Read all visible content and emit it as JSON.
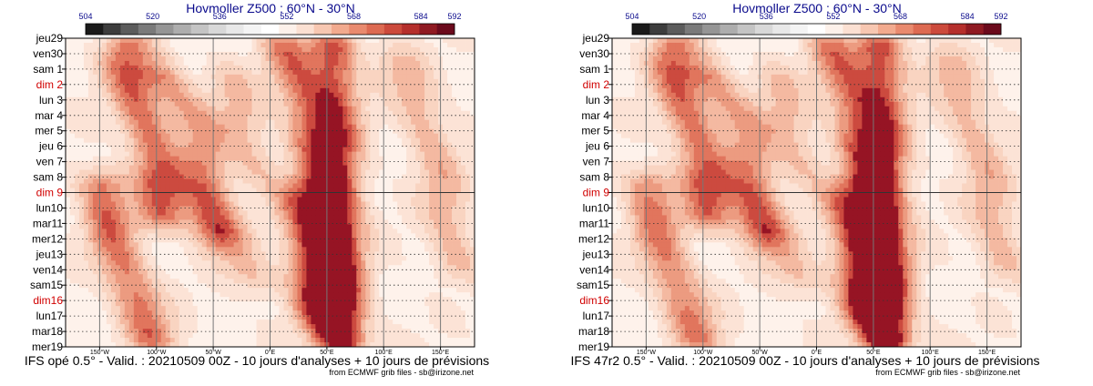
{
  "chart_data": [
    {
      "type": "heatmap",
      "title": "Hovmoller Z500 : 60°N - 30°N",
      "model_label": "IFS opé 0.5° - Valid. : 20210509 00Z - 10 jours d'analyses + 10 jours de prévisions",
      "credit": "from ECMWF grib files - sb@irizone.net",
      "colorbar_ticks": [
        504,
        520,
        536,
        552,
        568,
        584,
        592
      ],
      "colorbar_colors": [
        "#1a1a1a",
        "#3d3d3d",
        "#5c5c5c",
        "#7a7a7a",
        "#959595",
        "#adadad",
        "#c4c4c4",
        "#d8d8d8",
        "#e8e8e8",
        "#f4f4f4",
        "#ffffff",
        "#fdf1ea",
        "#fbe0d2",
        "#f7c7b1",
        "#f2aa8e",
        "#e98a6e",
        "#dd6a52",
        "#cc4a3c",
        "#b52f2c",
        "#8f1a22",
        "#6b0a1c"
      ],
      "x_ticks": [
        "150°W",
        "100°W",
        "50°W",
        "0°E",
        "50°E",
        "100°E",
        "150°E"
      ],
      "xlim": [
        -180,
        180
      ],
      "y_ticks": [
        {
          "label": "jeu29",
          "weekend": false
        },
        {
          "label": "ven30",
          "weekend": false
        },
        {
          "label": "sam 1",
          "weekend": false
        },
        {
          "label": "dim 2",
          "weekend": true
        },
        {
          "label": "lun 3",
          "weekend": false
        },
        {
          "label": "mar 4",
          "weekend": false
        },
        {
          "label": "mer 5",
          "weekend": false
        },
        {
          "label": "jeu 6",
          "weekend": false
        },
        {
          "label": "ven 7",
          "weekend": false
        },
        {
          "label": "sam 8",
          "weekend": false
        },
        {
          "label": "dim 9",
          "weekend": true
        },
        {
          "label": "lun10",
          "weekend": false
        },
        {
          "label": "mar11",
          "weekend": false
        },
        {
          "label": "mer12",
          "weekend": false
        },
        {
          "label": "jeu13",
          "weekend": false
        },
        {
          "label": "ven14",
          "weekend": false
        },
        {
          "label": "sam15",
          "weekend": false
        },
        {
          "label": "dim16",
          "weekend": true
        },
        {
          "label": "lun17",
          "weekend": false
        },
        {
          "label": "mar18",
          "weekend": false
        },
        {
          "label": "mer19",
          "weekend": false
        }
      ],
      "analysis_split_day": "dim 9",
      "ridges": [
        {
          "lon": [
            -125,
            -130,
            -100,
            -95
          ],
          "days": [
            0,
            1.5,
            8,
            12
          ],
          "strength": 0.6
        },
        {
          "lon": [
            -100,
            -60,
            -45
          ],
          "days": [
            2,
            6,
            13
          ],
          "strength": 0.45
        },
        {
          "lon": [
            -80,
            -50,
            -10
          ],
          "days": [
            9,
            12,
            16
          ],
          "strength": 0.35
        },
        {
          "lon": [
            -150,
            -140,
            -100
          ],
          "days": [
            9,
            13,
            20
          ],
          "strength": 0.6
        },
        {
          "lon": [
            10,
            30,
            45,
            55
          ],
          "days": [
            0,
            4,
            10,
            20
          ],
          "strength": 0.55
        },
        {
          "lon": [
            55,
            60,
            65
          ],
          "days": [
            0,
            8,
            20
          ],
          "strength": 0.7
        },
        {
          "lon": [
            110,
            130,
            150,
            165
          ],
          "days": [
            1,
            4,
            9,
            15
          ],
          "strength": 0.35
        },
        {
          "lon": [
            -40,
            -25,
            -10
          ],
          "days": [
            2,
            5,
            9
          ],
          "strength": 0.3
        },
        {
          "lon": [
            20,
            30,
            40
          ],
          "days": [
            10,
            12,
            18
          ],
          "strength": 0.5
        }
      ]
    },
    {
      "type": "heatmap",
      "title": "Hovmoller Z500 : 60°N - 30°N",
      "model_label": "IFS 47r2 0.5° - Valid. : 20210509 00Z - 10 jours d'analyses + 10 jours de prévisions",
      "credit": "from ECMWF grib files - sb@irizone.net",
      "colorbar_ticks": [
        504,
        520,
        536,
        552,
        568,
        584,
        592
      ],
      "colorbar_colors": [
        "#1a1a1a",
        "#3d3d3d",
        "#5c5c5c",
        "#7a7a7a",
        "#959595",
        "#adadad",
        "#c4c4c4",
        "#d8d8d8",
        "#e8e8e8",
        "#f4f4f4",
        "#ffffff",
        "#fdf1ea",
        "#fbe0d2",
        "#f7c7b1",
        "#f2aa8e",
        "#e98a6e",
        "#dd6a52",
        "#cc4a3c",
        "#b52f2c",
        "#8f1a22",
        "#6b0a1c"
      ],
      "x_ticks": [
        "150°W",
        "100°W",
        "50°W",
        "0°E",
        "50°E",
        "100°E",
        "150°E"
      ],
      "xlim": [
        -180,
        180
      ],
      "y_ticks": [
        {
          "label": "jeu29",
          "weekend": false
        },
        {
          "label": "ven30",
          "weekend": false
        },
        {
          "label": "sam 1",
          "weekend": false
        },
        {
          "label": "dim 2",
          "weekend": true
        },
        {
          "label": "lun 3",
          "weekend": false
        },
        {
          "label": "mar 4",
          "weekend": false
        },
        {
          "label": "mer 5",
          "weekend": false
        },
        {
          "label": "jeu 6",
          "weekend": false
        },
        {
          "label": "ven 7",
          "weekend": false
        },
        {
          "label": "sam 8",
          "weekend": false
        },
        {
          "label": "dim 9",
          "weekend": true
        },
        {
          "label": "lun10",
          "weekend": false
        },
        {
          "label": "mar11",
          "weekend": false
        },
        {
          "label": "mer12",
          "weekend": false
        },
        {
          "label": "jeu13",
          "weekend": false
        },
        {
          "label": "ven14",
          "weekend": false
        },
        {
          "label": "sam15",
          "weekend": false
        },
        {
          "label": "dim16",
          "weekend": true
        },
        {
          "label": "lun17",
          "weekend": false
        },
        {
          "label": "mar18",
          "weekend": false
        },
        {
          "label": "mer19",
          "weekend": false
        }
      ],
      "analysis_split_day": "dim 9",
      "ridges": [
        {
          "lon": [
            -125,
            -130,
            -100,
            -95
          ],
          "days": [
            0,
            1.5,
            8,
            12
          ],
          "strength": 0.6
        },
        {
          "lon": [
            -100,
            -60,
            -45
          ],
          "days": [
            2,
            6,
            13
          ],
          "strength": 0.45
        },
        {
          "lon": [
            -80,
            -50,
            -10
          ],
          "days": [
            9,
            12,
            16
          ],
          "strength": 0.35
        },
        {
          "lon": [
            -150,
            -140,
            -100
          ],
          "days": [
            9,
            13,
            20
          ],
          "strength": 0.55
        },
        {
          "lon": [
            10,
            30,
            45,
            55
          ],
          "days": [
            0,
            4,
            10,
            20
          ],
          "strength": 0.55
        },
        {
          "lon": [
            55,
            60,
            65
          ],
          "days": [
            0,
            8,
            20
          ],
          "strength": 0.72
        },
        {
          "lon": [
            110,
            130,
            150,
            165
          ],
          "days": [
            1,
            4,
            9,
            15
          ],
          "strength": 0.35
        },
        {
          "lon": [
            -40,
            -25,
            -10
          ],
          "days": [
            2,
            5,
            9
          ],
          "strength": 0.3
        },
        {
          "lon": [
            20,
            30,
            40
          ],
          "days": [
            10,
            12,
            18
          ],
          "strength": 0.52
        }
      ]
    }
  ]
}
